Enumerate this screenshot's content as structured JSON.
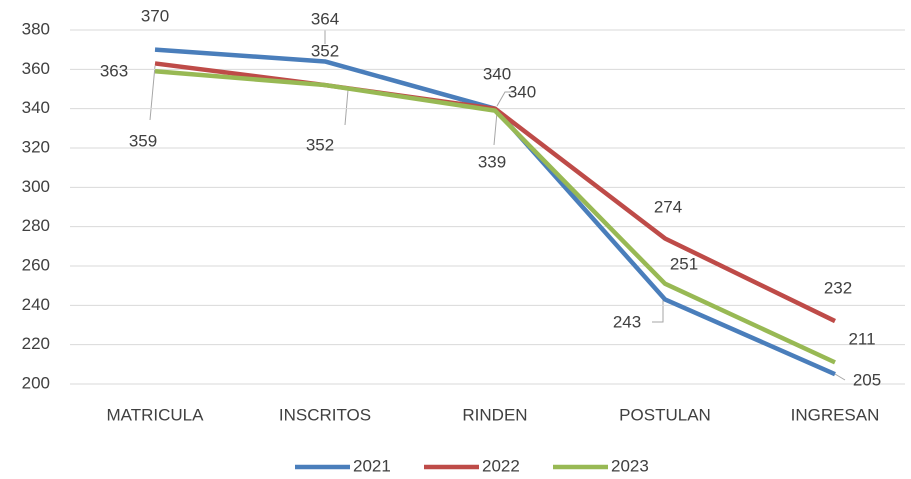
{
  "chart_data": {
    "type": "line",
    "categories": [
      "MATRICULA",
      "INSCRITOS",
      "RINDEN",
      "POSTULAN",
      "INGRESAN"
    ],
    "series": [
      {
        "name": "2021",
        "color": "#4a7ebb",
        "values": [
          370,
          364,
          340,
          243,
          205
        ]
      },
      {
        "name": "2022",
        "color": "#be4b48",
        "values": [
          363,
          352,
          340,
          274,
          232
        ]
      },
      {
        "name": "2023",
        "color": "#98b954",
        "values": [
          359,
          352,
          339,
          251,
          211
        ]
      }
    ],
    "ylim": [
      200,
      380
    ],
    "yticks": [
      200,
      220,
      240,
      260,
      280,
      300,
      320,
      340,
      360,
      380
    ],
    "grid": true,
    "legend": "bottom"
  }
}
